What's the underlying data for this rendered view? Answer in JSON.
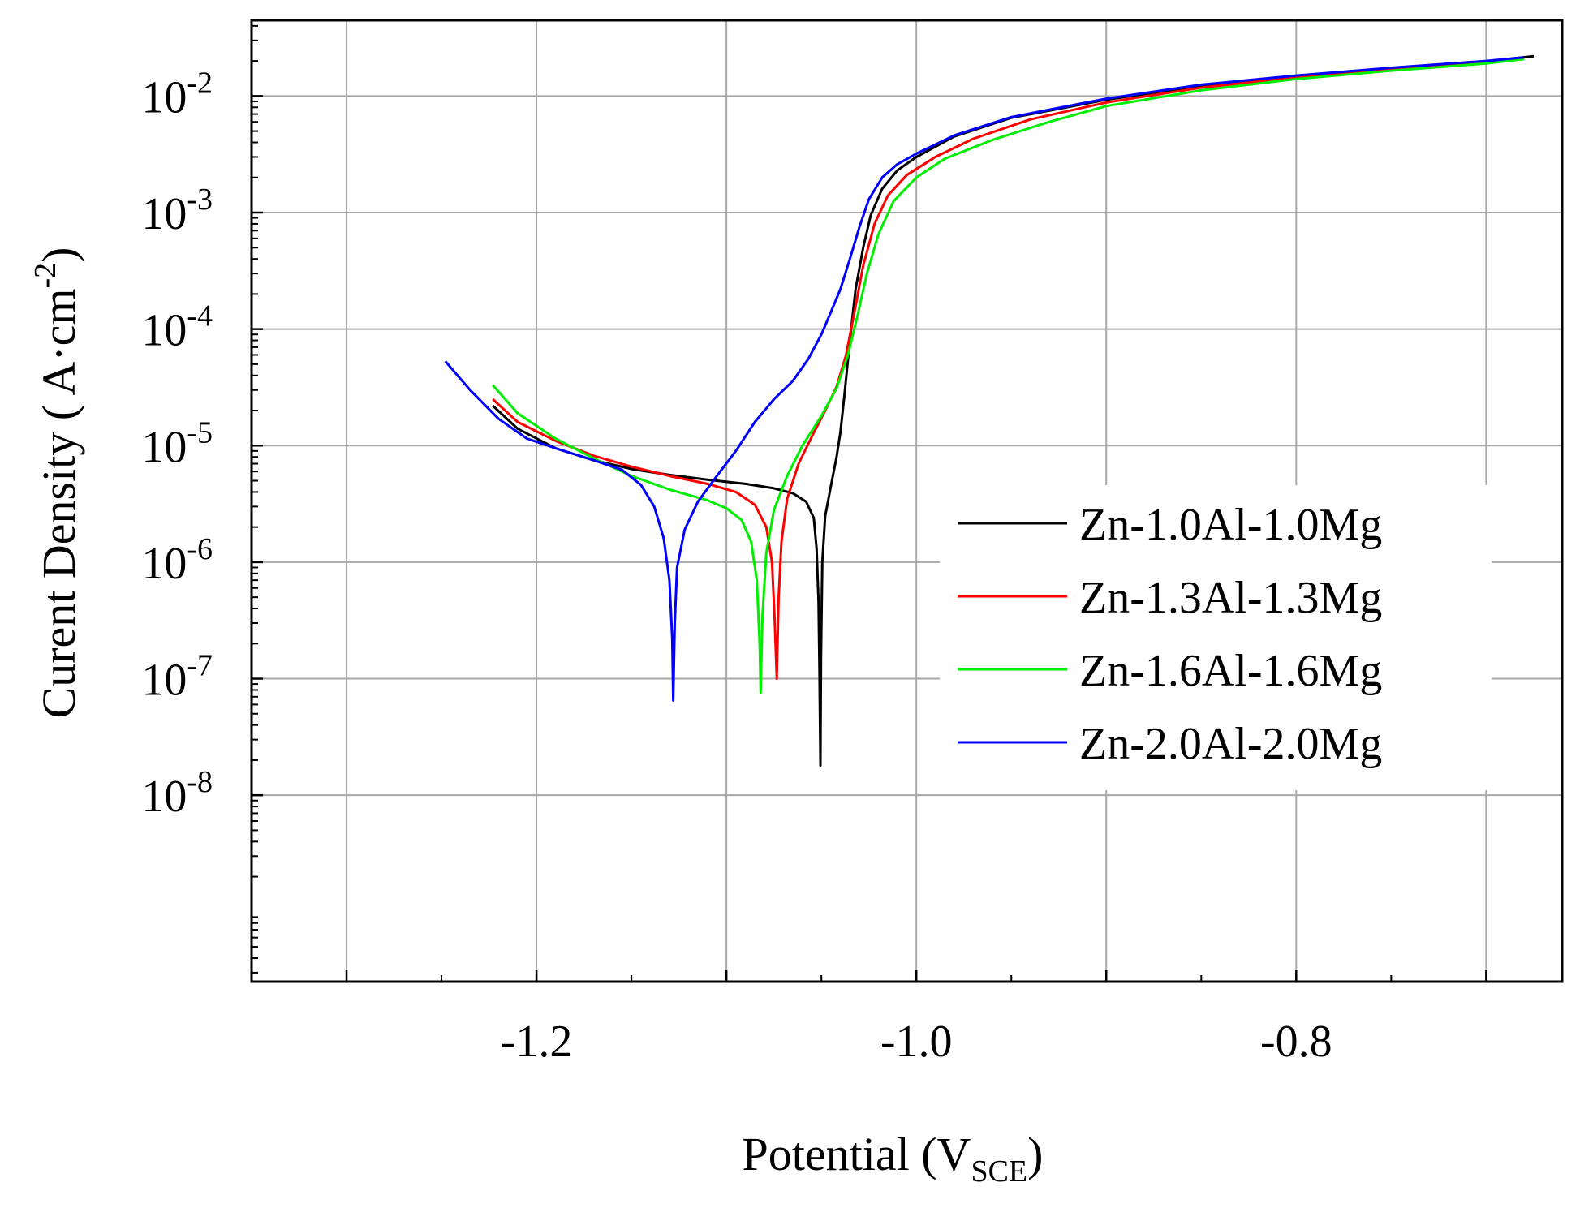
{
  "chart_data": {
    "type": "line",
    "xlabel": "Potential (V",
    "xlabel_sub": "SCE",
    "xlabel_close": ")",
    "ylabel": "Curent Density ( A·cm",
    "ylabel_sup": "-2",
    "ylabel_close": ")",
    "xlim": [
      -1.35,
      -0.66
    ],
    "ylim_exponent": [
      -9.6,
      -1.35
    ],
    "y_scale": "log",
    "grid": true,
    "legend_position": "right",
    "x_ticks": [
      {
        "value": -1.2,
        "label": "-1.2"
      },
      {
        "value": -1.0,
        "label": "-1.0"
      },
      {
        "value": -0.8,
        "label": "-0.8"
      }
    ],
    "x_gridlines": [
      -1.3,
      -1.2,
      -1.1,
      -1.0,
      -0.9,
      -0.8,
      -0.7
    ],
    "y_ticks": [
      {
        "exp": -2,
        "base": "10",
        "sup": "-2"
      },
      {
        "exp": -3,
        "base": "10",
        "sup": "-3"
      },
      {
        "exp": -4,
        "base": "10",
        "sup": "-4"
      },
      {
        "exp": -5,
        "base": "10",
        "sup": "-5"
      },
      {
        "exp": -6,
        "base": "10",
        "sup": "-6"
      },
      {
        "exp": -7,
        "base": "10",
        "sup": "-7"
      },
      {
        "exp": -8,
        "base": "10",
        "sup": "-8"
      }
    ],
    "series": [
      {
        "name": "Zn-1.0Al-1.0Mg",
        "color": "#000000",
        "points": [
          [
            -1.223,
            2.2e-05
          ],
          [
            -1.21,
            1.4e-05
          ],
          [
            -1.19,
            9.5e-06
          ],
          [
            -1.17,
            7.5e-06
          ],
          [
            -1.15,
            6.3e-06
          ],
          [
            -1.13,
            5.6e-06
          ],
          [
            -1.11,
            5.1e-06
          ],
          [
            -1.09,
            4.7e-06
          ],
          [
            -1.075,
            4.3e-06
          ],
          [
            -1.065,
            3.9e-06
          ],
          [
            -1.058,
            3.3e-06
          ],
          [
            -1.054,
            2.4e-06
          ],
          [
            -1.0525,
            1.3e-06
          ],
          [
            -1.0515,
            4.5e-07
          ],
          [
            -1.051,
            1.2e-07
          ],
          [
            -1.0505,
            1.8e-08
          ],
          [
            -1.0502,
            1.5e-07
          ],
          [
            -1.0495,
            1e-06
          ],
          [
            -1.048,
            2.5e-06
          ],
          [
            -1.045,
            4.5e-06
          ],
          [
            -1.042,
            8e-06
          ],
          [
            -1.04,
            1.3e-05
          ],
          [
            -1.038,
            2.6e-05
          ],
          [
            -1.035,
            8e-05
          ],
          [
            -1.032,
            0.00022
          ],
          [
            -1.028,
            0.0005
          ],
          [
            -1.024,
            0.00095
          ],
          [
            -1.018,
            0.0016
          ],
          [
            -1.01,
            0.0023
          ],
          [
            -1.0,
            0.003
          ],
          [
            -0.98,
            0.0045
          ],
          [
            -0.95,
            0.0065
          ],
          [
            -0.9,
            0.0093
          ],
          [
            -0.85,
            0.0123
          ],
          [
            -0.8,
            0.0148
          ],
          [
            -0.75,
            0.0172
          ],
          [
            -0.7,
            0.0198
          ],
          [
            -0.675,
            0.022
          ]
        ]
      },
      {
        "name": "Zn-1.3Al-1.3Mg",
        "color": "#ff0000",
        "points": [
          [
            -1.223,
            2.5e-05
          ],
          [
            -1.21,
            1.6e-05
          ],
          [
            -1.19,
            1.1e-05
          ],
          [
            -1.17,
            8.2e-06
          ],
          [
            -1.15,
            6.6e-06
          ],
          [
            -1.13,
            5.5e-06
          ],
          [
            -1.11,
            4.7e-06
          ],
          [
            -1.095,
            4e-06
          ],
          [
            -1.085,
            3.1e-06
          ],
          [
            -1.079,
            2e-06
          ],
          [
            -1.076,
            1e-06
          ],
          [
            -1.0745,
            3e-07
          ],
          [
            -1.0735,
            1e-07
          ],
          [
            -1.0725,
            5e-07
          ],
          [
            -1.071,
            1.5e-06
          ],
          [
            -1.068,
            3.5e-06
          ],
          [
            -1.062,
            7e-06
          ],
          [
            -1.055,
            1.2e-05
          ],
          [
            -1.048,
            2e-05
          ],
          [
            -1.042,
            3.2e-05
          ],
          [
            -1.037,
            6e-05
          ],
          [
            -1.033,
            0.00013
          ],
          [
            -1.028,
            0.00035
          ],
          [
            -1.022,
            0.0008
          ],
          [
            -1.015,
            0.0014
          ],
          [
            -1.005,
            0.0021
          ],
          [
            -0.99,
            0.003
          ],
          [
            -0.97,
            0.0043
          ],
          [
            -0.94,
            0.0063
          ],
          [
            -0.9,
            0.0088
          ],
          [
            -0.85,
            0.0118
          ],
          [
            -0.8,
            0.0145
          ],
          [
            -0.75,
            0.017
          ],
          [
            -0.7,
            0.0195
          ],
          [
            -0.68,
            0.0212
          ]
        ]
      },
      {
        "name": "Zn-1.6Al-1.6Mg",
        "color": "#00ee00",
        "points": [
          [
            -1.223,
            3.3e-05
          ],
          [
            -1.21,
            1.9e-05
          ],
          [
            -1.19,
            1.15e-05
          ],
          [
            -1.17,
            7.8e-06
          ],
          [
            -1.15,
            5.5e-06
          ],
          [
            -1.13,
            4.2e-06
          ],
          [
            -1.11,
            3.4e-06
          ],
          [
            -1.1,
            2.9e-06
          ],
          [
            -1.092,
            2.3e-06
          ],
          [
            -1.087,
            1.5e-06
          ],
          [
            -1.084,
            7e-07
          ],
          [
            -1.0825,
            2e-07
          ],
          [
            -1.082,
            7.5e-08
          ],
          [
            -1.081,
            3.5e-07
          ],
          [
            -1.079,
            1.2e-06
          ],
          [
            -1.075,
            2.8e-06
          ],
          [
            -1.068,
            5.5e-06
          ],
          [
            -1.06,
            1e-05
          ],
          [
            -1.05,
            1.8e-05
          ],
          [
            -1.042,
            3.1e-05
          ],
          [
            -1.036,
            6e-05
          ],
          [
            -1.031,
            0.00013
          ],
          [
            -1.026,
            0.0003
          ],
          [
            -1.02,
            0.00065
          ],
          [
            -1.012,
            0.00125
          ],
          [
            -1.0,
            0.002
          ],
          [
            -0.985,
            0.0029
          ],
          [
            -0.96,
            0.0042
          ],
          [
            -0.93,
            0.006
          ],
          [
            -0.9,
            0.0082
          ],
          [
            -0.85,
            0.0112
          ],
          [
            -0.8,
            0.014
          ],
          [
            -0.75,
            0.0165
          ],
          [
            -0.7,
            0.019
          ],
          [
            -0.68,
            0.0208
          ]
        ]
      },
      {
        "name": "Zn-2.0Al-2.0Mg",
        "color": "#0000ff",
        "points": [
          [
            -1.248,
            5.3e-05
          ],
          [
            -1.235,
            3e-05
          ],
          [
            -1.22,
            1.7e-05
          ],
          [
            -1.205,
            1.15e-05
          ],
          [
            -1.19,
            9.5e-06
          ],
          [
            -1.17,
            7.5e-06
          ],
          [
            -1.155,
            6.2e-06
          ],
          [
            -1.145,
            4.6e-06
          ],
          [
            -1.138,
            3e-06
          ],
          [
            -1.133,
            1.6e-06
          ],
          [
            -1.13,
            7e-07
          ],
          [
            -1.1285,
            2.2e-07
          ],
          [
            -1.128,
            6.5e-08
          ],
          [
            -1.1272,
            3e-07
          ],
          [
            -1.126,
            9e-07
          ],
          [
            -1.122,
            1.9e-06
          ],
          [
            -1.115,
            3.3e-06
          ],
          [
            -1.105,
            5.5e-06
          ],
          [
            -1.095,
            9e-06
          ],
          [
            -1.085,
            1.6e-05
          ],
          [
            -1.075,
            2.5e-05
          ],
          [
            -1.065,
            3.6e-05
          ],
          [
            -1.057,
            5.5e-05
          ],
          [
            -1.05,
            9e-05
          ],
          [
            -1.045,
            0.00014
          ],
          [
            -1.04,
            0.00022
          ],
          [
            -1.035,
            0.0004
          ],
          [
            -1.03,
            0.00075
          ],
          [
            -1.025,
            0.0013
          ],
          [
            -1.018,
            0.002
          ],
          [
            -1.01,
            0.0026
          ],
          [
            -1.0,
            0.0032
          ],
          [
            -0.98,
            0.0046
          ],
          [
            -0.95,
            0.0066
          ],
          [
            -0.9,
            0.0095
          ],
          [
            -0.85,
            0.0125
          ],
          [
            -0.8,
            0.015
          ],
          [
            -0.75,
            0.0175
          ],
          [
            -0.7,
            0.02
          ],
          [
            -0.68,
            0.0215
          ]
        ]
      }
    ]
  }
}
